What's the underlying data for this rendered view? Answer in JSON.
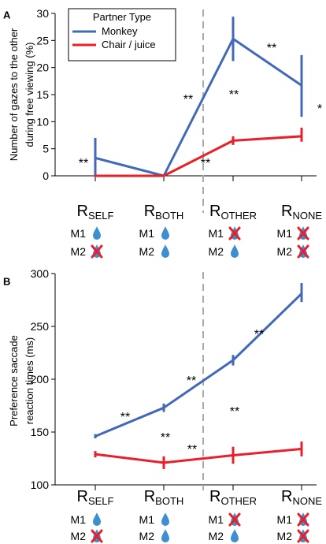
{
  "colors": {
    "monkey": "#4169b8",
    "chair": "#e8202a",
    "drop": "#3d8fd0",
    "cross": "#e8202a",
    "divider": "#aaaaaa",
    "axis": "#000000"
  },
  "chart_data": [
    {
      "panel": "A",
      "type": "line",
      "ylabel_lines": [
        "Number of gazes to the other",
        "during free viewing (%)"
      ],
      "ylim": [
        0,
        30
      ],
      "yticks": [
        0,
        5,
        10,
        15,
        20,
        25,
        30
      ],
      "categories": [
        {
          "main": "R",
          "sub": "SELF"
        },
        {
          "main": "R",
          "sub": "BOTH"
        },
        {
          "main": "R",
          "sub": "OTHER"
        },
        {
          "main": "R",
          "sub": "NONE"
        }
      ],
      "legend": {
        "title": "Partner Type",
        "placement": "top-left"
      },
      "series": [
        {
          "name": "Monkey",
          "color": "#4169b8",
          "values": [
            3.3,
            0.0,
            25.3,
            16.7
          ],
          "err_low": [
            0,
            3.3,
            21.2,
            10.9
          ],
          "err_high": [
            7.0,
            3.3,
            29.4,
            22.3
          ]
        },
        {
          "name": "Chair / juice",
          "color": "#e8202a",
          "values": [
            0.0,
            0.0,
            6.5,
            7.3
          ],
          "err_low": [
            0,
            0,
            5.7,
            6.3
          ],
          "err_high": [
            0,
            0,
            7.3,
            8.9
          ]
        }
      ],
      "significance": [
        "**",
        "**",
        "**",
        "**",
        "*",
        "**"
      ],
      "vline_between": [
        1,
        2
      ]
    },
    {
      "panel": "B",
      "type": "line",
      "ylabel_lines": [
        "Preference saccade",
        "reaction times (ms)"
      ],
      "ylim": [
        100,
        300
      ],
      "yticks": [
        100,
        150,
        200,
        250,
        300
      ],
      "categories": [
        {
          "main": "R",
          "sub": "SELF"
        },
        {
          "main": "R",
          "sub": "BOTH"
        },
        {
          "main": "R",
          "sub": "OTHER"
        },
        {
          "main": "R",
          "sub": "NONE"
        }
      ],
      "series": [
        {
          "name": "Monkey",
          "color": "#4169b8",
          "values": [
            146,
            173,
            218,
            281
          ],
          "err_low": [
            144,
            169,
            213,
            273
          ],
          "err_high": [
            148,
            177,
            223,
            291
          ]
        },
        {
          "name": "Chair / juice",
          "color": "#e8202a",
          "values": [
            129,
            121,
            128,
            134
          ],
          "err_low": [
            126,
            115,
            120,
            127
          ],
          "err_high": [
            132,
            127,
            136,
            141
          ]
        }
      ],
      "significance": [
        "**",
        "**",
        "**",
        "**",
        "**",
        "**"
      ],
      "vline_between": [
        1,
        2
      ]
    }
  ],
  "reward_rows": [
    {
      "label": "M1",
      "icons": [
        "drop",
        "drop",
        "cross",
        "cross"
      ]
    },
    {
      "label": "M2",
      "icons": [
        "cross",
        "drop",
        "drop",
        "cross"
      ]
    }
  ]
}
